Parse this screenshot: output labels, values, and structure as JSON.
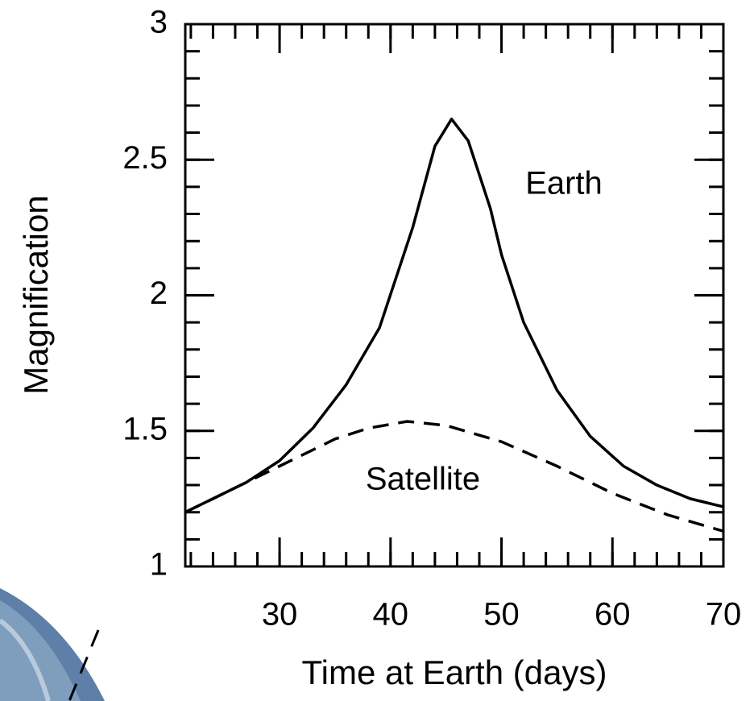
{
  "chart_data": {
    "type": "line",
    "x_label": "Time at Earth (days)",
    "y_label": "Magnification",
    "xlim": [
      21.5,
      70
    ],
    "ylim": [
      1,
      3
    ],
    "xticks": [
      30,
      40,
      50,
      60,
      70
    ],
    "yticks": [
      1,
      1.5,
      2,
      2.5,
      3
    ],
    "series": [
      {
        "name": "Earth",
        "color": "#000000",
        "dash": false,
        "x": [
          21.5,
          24,
          27,
          30,
          33,
          36,
          39,
          42,
          44,
          45.5,
          47,
          49,
          50,
          52,
          55,
          58,
          61,
          64,
          67,
          70
        ],
        "values": [
          1.2,
          1.25,
          1.31,
          1.39,
          1.51,
          1.67,
          1.88,
          2.25,
          2.55,
          2.65,
          2.57,
          2.32,
          2.15,
          1.9,
          1.65,
          1.48,
          1.37,
          1.3,
          1.25,
          1.22
        ]
      },
      {
        "name": "Satellite",
        "color": "#000000",
        "dash": true,
        "x": [
          21.5,
          25,
          30,
          35,
          38,
          41.5,
          45,
          50,
          55,
          60,
          65,
          70
        ],
        "values": [
          1.2,
          1.27,
          1.37,
          1.47,
          1.51,
          1.535,
          1.52,
          1.46,
          1.37,
          1.27,
          1.19,
          1.13
        ]
      }
    ]
  }
}
